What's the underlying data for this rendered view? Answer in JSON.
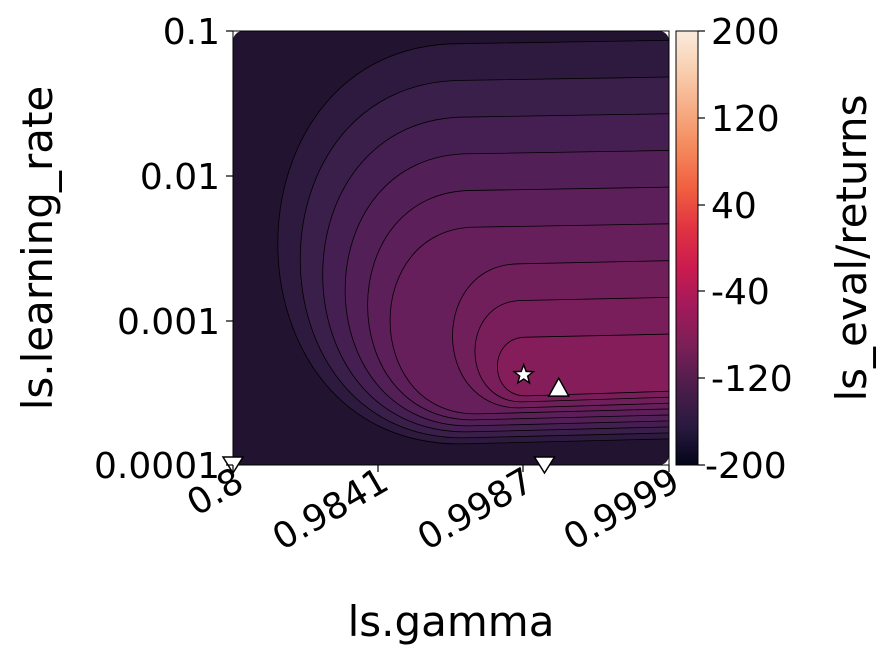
{
  "chart_data": {
    "type": "contour",
    "xlabel": "ls.gamma",
    "ylabel": "ls.learning_rate",
    "colorbar_label": "ls_eval/returns",
    "x_scale": "reciprocal (1 - gamma)",
    "y_scale": "log",
    "x_ticks": [
      "0.8",
      "0.9841",
      "0.9987",
      "0.9999"
    ],
    "x_tick_values": [
      0.8,
      0.9841,
      0.9987,
      0.9999
    ],
    "y_ticks": [
      "0.1",
      "0.01",
      "0.001",
      "0.0001"
    ],
    "y_tick_values": [
      0.1,
      0.01,
      0.001,
      0.0001
    ],
    "colorbar_ticks": [
      "200",
      "120",
      "40",
      "-40",
      "-120",
      "-200"
    ],
    "colorbar_tick_values": [
      200,
      120,
      40,
      -40,
      -120,
      -200
    ],
    "colorbar_range": [
      -200,
      200
    ],
    "colormap": [
      "#03051a",
      "#2b1a40",
      "#4c1d4b",
      "#7a1f57",
      "#a11a5b",
      "#cb1b4f",
      "#e13342",
      "#f05f40",
      "#f5875b",
      "#f6ac84",
      "#f8cfb0",
      "#faebdd"
    ],
    "contour_fills": [
      "#221331",
      "#2e1a3e",
      "#3a1f4a",
      "#461f52",
      "#521f56",
      "#5d1f59",
      "#661f5a",
      "#701f5b",
      "#7a1e5b",
      "#851d5b"
    ],
    "contour_line_color": "#000000",
    "optimum_region": {
      "gamma": 0.999,
      "learning_rate": 0.0004
    },
    "markers": [
      {
        "shape": "star",
        "gamma": 0.9987,
        "learning_rate": 0.00042
      },
      {
        "shape": "triangle-up",
        "gamma": 0.9993,
        "learning_rate": 0.00034
      },
      {
        "shape": "triangle-down",
        "gamma": 0.9991,
        "learning_rate": 0.0001
      },
      {
        "shape": "triangle-down",
        "gamma": 0.8,
        "learning_rate": 0.0001
      }
    ],
    "grid": false
  }
}
